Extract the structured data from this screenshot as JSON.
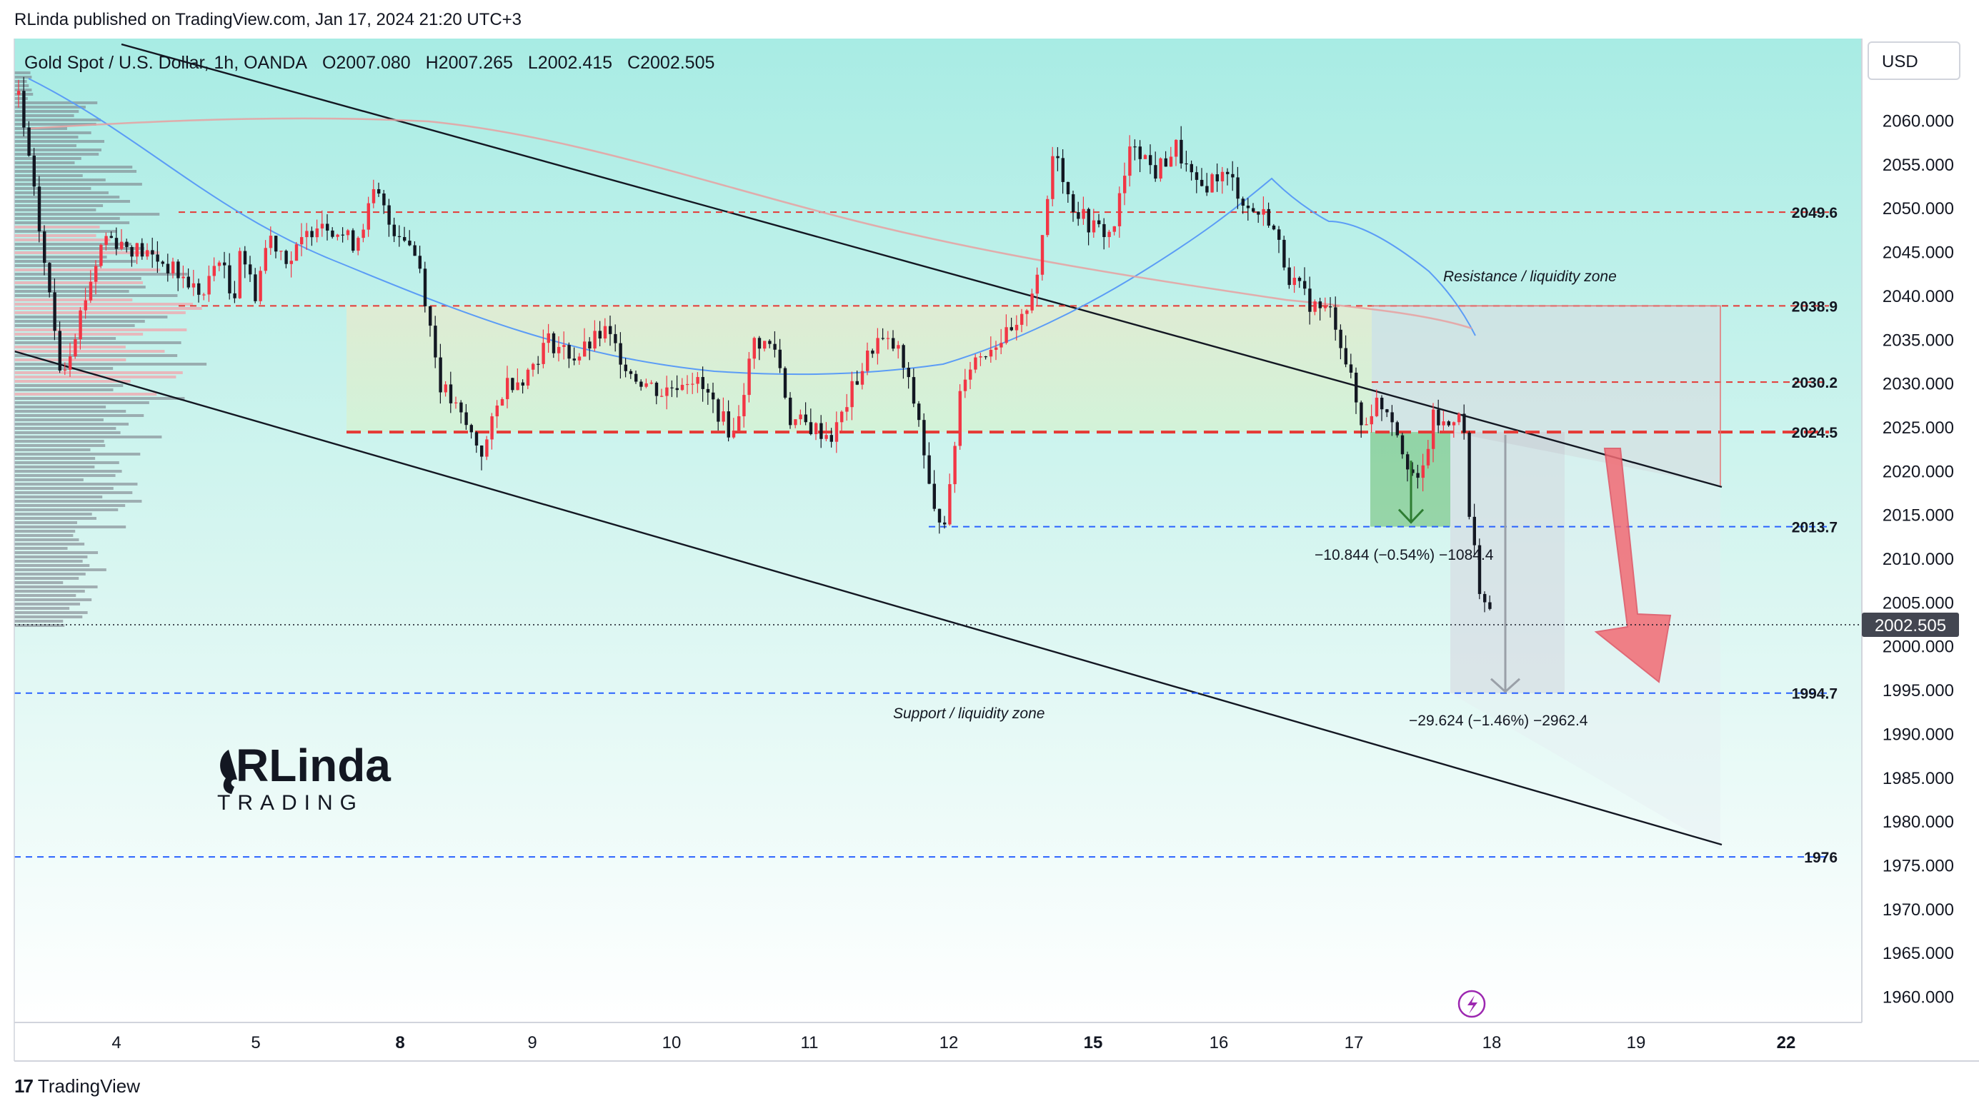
{
  "publisher_line": "RLinda published on TradingView.com, Jan 17, 2024 21:20 UTC+3",
  "legend": {
    "symbol": "Gold Spot / U.S. Dollar, 1h, OANDA",
    "open": "O2007.080",
    "high": "H2007.265",
    "low": "L2002.415",
    "close": "C2002.505"
  },
  "currency_button": "USD",
  "footer_brand": "TradingView",
  "logo_text": {
    "top": "RLinda",
    "bottom": "TRADING"
  },
  "chart_data": {
    "type": "candlestick",
    "instrument": "Gold Spot / U.S. Dollar, 1h, OANDA",
    "ylim": [
      1956,
      2066
    ],
    "y_ticks": [
      "2060.000",
      "2055.000",
      "2050.000",
      "2045.000",
      "2040.000",
      "2035.000",
      "2030.000",
      "2025.000",
      "2020.000",
      "2015.000",
      "2010.000",
      "2005.000",
      "2000.000",
      "1995.000",
      "1990.000",
      "1985.000",
      "1980.000",
      "1975.000",
      "1970.000",
      "1965.000",
      "1960.000"
    ],
    "x_ticks": [
      {
        "label": "4",
        "bold": false
      },
      {
        "label": "5",
        "bold": false
      },
      {
        "label": "8",
        "bold": true
      },
      {
        "label": "9",
        "bold": false
      },
      {
        "label": "10",
        "bold": false
      },
      {
        "label": "11",
        "bold": false
      },
      {
        "label": "12",
        "bold": false
      },
      {
        "label": "15",
        "bold": true
      },
      {
        "label": "16",
        "bold": false
      },
      {
        "label": "17",
        "bold": false
      },
      {
        "label": "18",
        "bold": false
      },
      {
        "label": "19",
        "bold": false
      },
      {
        "label": "22",
        "bold": true
      }
    ],
    "last_price": "2002.505",
    "levels": [
      {
        "label": "2049.6",
        "value": 2049.6,
        "color": "#e53935",
        "style": "dashed"
      },
      {
        "label": "2038.9",
        "value": 2038.9,
        "color": "#e53935",
        "style": "dashed"
      },
      {
        "label": "2030.2",
        "value": 2030.2,
        "color": "#e53935",
        "style": "dashed"
      },
      {
        "label": "2024.5",
        "value": 2024.5,
        "color": "#e53935",
        "style": "dashed-bold"
      },
      {
        "label": "2013.7",
        "value": 2013.7,
        "color": "#2962ff",
        "style": "dashed"
      },
      {
        "label": "1994.7",
        "value": 1994.7,
        "color": "#2962ff",
        "style": "dashed"
      },
      {
        "label": "1976",
        "value": 1976.0,
        "color": "#2962ff",
        "style": "dashed"
      }
    ],
    "annotations": [
      {
        "text": "Resistance / liquidity zone"
      },
      {
        "text": "Support / liquidity zone"
      },
      {
        "text": "−10.844 (−0.54%) −1084.4"
      },
      {
        "text": "−29.624 (−1.46%) −2962.4"
      }
    ],
    "colors": {
      "up": "#f23645",
      "down": "#131722",
      "ma_fast": "#5b9cf6",
      "ma_slow": "#e8a0a0",
      "bg_top": "#a8ece4",
      "bg_bottom": "#ffffff"
    }
  }
}
